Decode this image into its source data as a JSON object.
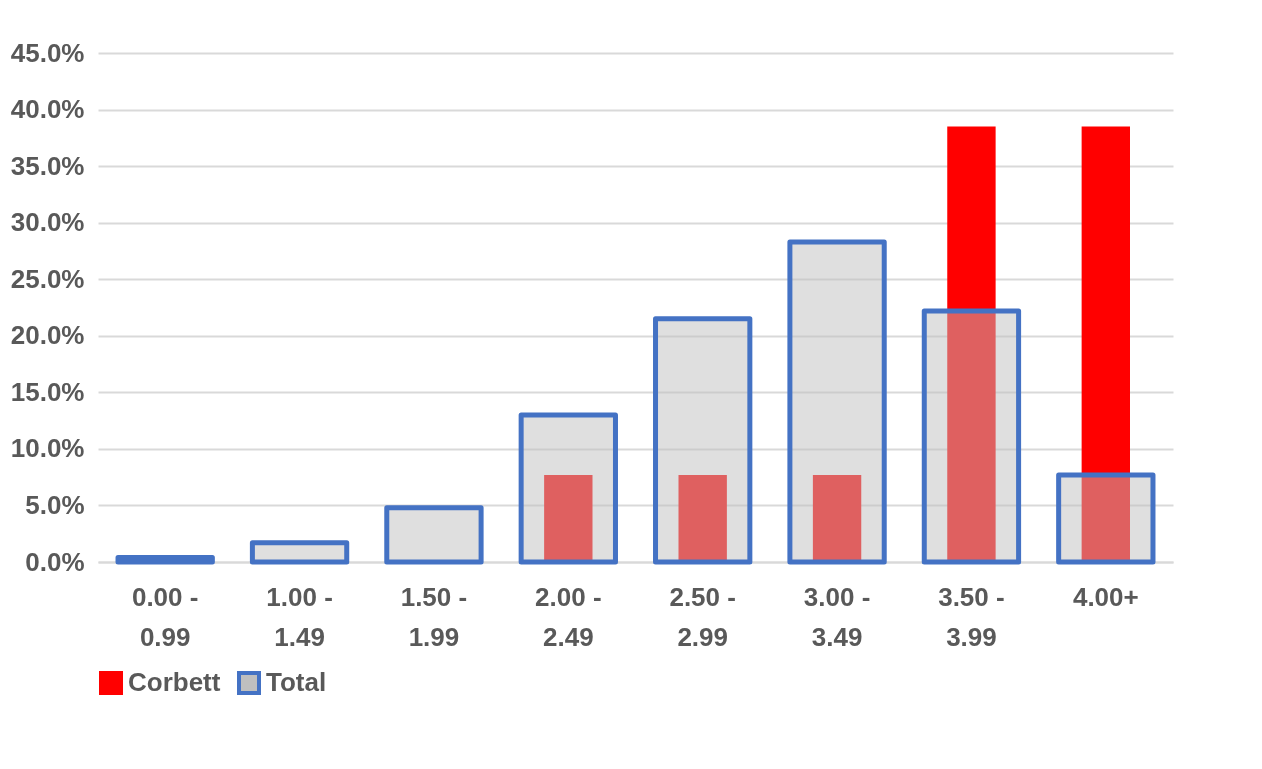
{
  "chart_data": {
    "type": "bar",
    "categories": [
      "0.00 - 0.99",
      "1.00 - 1.49",
      "1.50 - 1.99",
      "2.00 - 2.49",
      "2.50 - 2.99",
      "3.00 - 3.49",
      "3.50 - 3.99",
      "4.00+"
    ],
    "series": [
      {
        "name": "Corbett",
        "color": "#ff0000",
        "values": [
          0,
          0,
          0,
          7.7,
          7.7,
          7.7,
          38.5,
          38.5
        ]
      },
      {
        "name": "Total",
        "color": "#4472c4",
        "values": [
          0.4,
          1.7,
          4.8,
          13.0,
          21.5,
          28.3,
          22.2,
          7.7
        ]
      }
    ],
    "ylim": [
      0,
      45
    ],
    "yticks": [
      {
        "value": 0,
        "label": "0.0%"
      },
      {
        "value": 5,
        "label": "5.0%"
      },
      {
        "value": 10,
        "label": "10.0%"
      },
      {
        "value": 15,
        "label": "15.0%"
      },
      {
        "value": 20,
        "label": "20.0%"
      },
      {
        "value": 25,
        "label": "25.0%"
      },
      {
        "value": 30,
        "label": "30.0%"
      },
      {
        "value": 35,
        "label": "35.0%"
      },
      {
        "value": 40,
        "label": "40.0%"
      },
      {
        "value": 45,
        "label": "45.0%"
      }
    ],
    "grid": "y",
    "legend": "bottom"
  }
}
